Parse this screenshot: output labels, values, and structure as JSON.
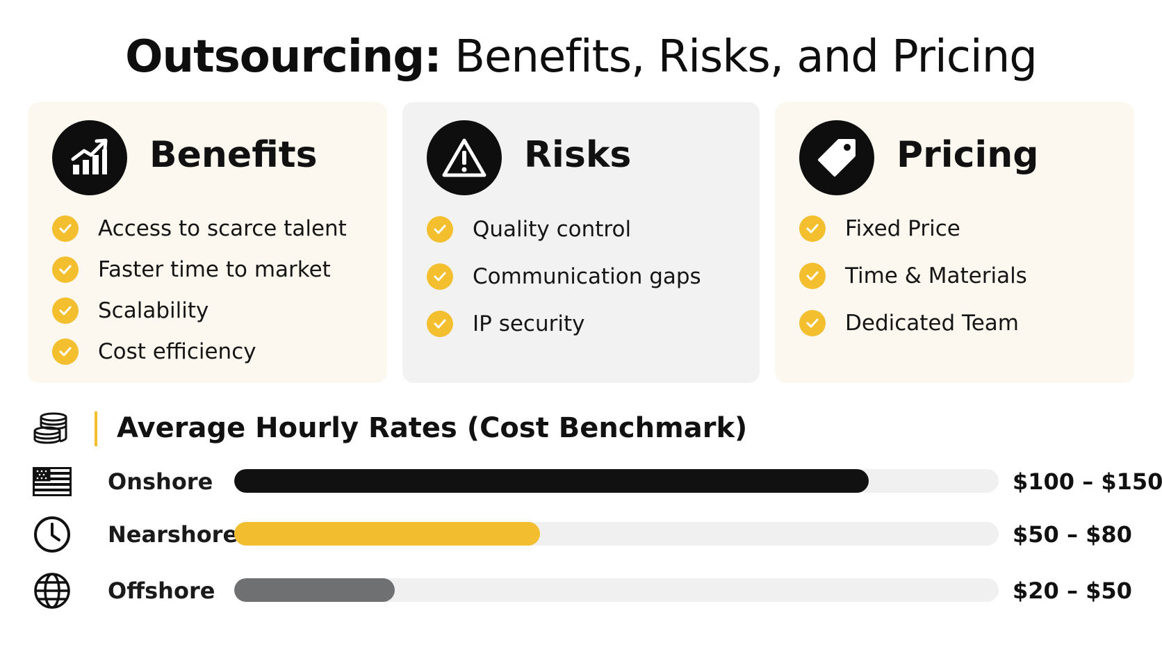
{
  "title": {
    "bold": "Outsourcing:",
    "rest": " Benefits, Risks, and Pricing"
  },
  "cards": {
    "benefits": {
      "title": "Benefits",
      "icon": "growth-chart-icon",
      "items": [
        "Access to scarce talent",
        "Faster time to market",
        "Scalability",
        "Cost efficiency"
      ]
    },
    "risks": {
      "title": "Risks",
      "icon": "warning-icon",
      "items": [
        "Quality control",
        "Communication gaps",
        "IP security"
      ]
    },
    "pricing": {
      "title": "Pricing",
      "icon": "price-tag-icon",
      "items": [
        "Fixed Price",
        "Time & Materials",
        "Dedicated Team"
      ]
    }
  },
  "rates": {
    "title": "Average Hourly Rates (Cost Benchmark)",
    "icon": "coins-icon",
    "rows": [
      {
        "label": "Onshore",
        "value": "$100 – $150",
        "level": 0.83,
        "color": "#111111",
        "icon": "us-flag-icon"
      },
      {
        "label": "Nearshore",
        "value": "$50 – $80",
        "level": 0.4,
        "color": "#f2bd2e",
        "icon": "clock-icon"
      },
      {
        "label": "Offshore",
        "value": "$20 – $50",
        "level": 0.21,
        "color": "#6f7072",
        "icon": "globe-icon"
      }
    ]
  },
  "colors": {
    "accent": "#f3bf2f",
    "benefits_card": "#fcf8ef",
    "risks_card": "#f2f2f3",
    "track": "#f0f0f1"
  }
}
